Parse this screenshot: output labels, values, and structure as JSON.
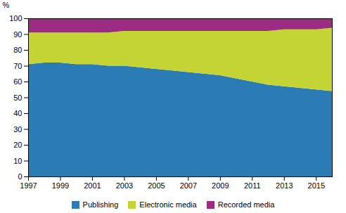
{
  "chart_data": {
    "type": "area",
    "stacked": true,
    "x": [
      1997,
      1998,
      1999,
      2000,
      2001,
      2002,
      2003,
      2004,
      2005,
      2006,
      2007,
      2008,
      2009,
      2010,
      2011,
      2012,
      2013,
      2014,
      2015,
      2016
    ],
    "series": [
      {
        "name": "Publishing",
        "color": "#2B7CB5",
        "values": [
          71,
          72,
          72,
          71,
          71,
          70,
          70,
          69,
          68,
          67,
          66,
          65,
          64,
          62,
          60,
          58,
          57,
          56,
          55,
          54
        ]
      },
      {
        "name": "Electronic media",
        "color": "#C5D435",
        "values": [
          20,
          19,
          19,
          20,
          20,
          21,
          22,
          23,
          24,
          25,
          26,
          27,
          28,
          30,
          32,
          34,
          36,
          37,
          38,
          40
        ]
      },
      {
        "name": "Recorded media",
        "color": "#9B2C82",
        "values": [
          9,
          9,
          9,
          9,
          9,
          9,
          8,
          8,
          8,
          8,
          8,
          8,
          8,
          8,
          8,
          8,
          7,
          7,
          7,
          6
        ]
      }
    ],
    "ylabel": "%",
    "xlim": [
      1997,
      2016
    ],
    "xticks": [
      1997,
      1999,
      2001,
      2003,
      2005,
      2007,
      2009,
      2011,
      2013,
      2015
    ],
    "ylim": [
      0,
      100
    ],
    "yticks": [
      0,
      10,
      20,
      30,
      40,
      50,
      60,
      70,
      80,
      90,
      100
    ],
    "grid": "y",
    "legend": "bottom"
  }
}
